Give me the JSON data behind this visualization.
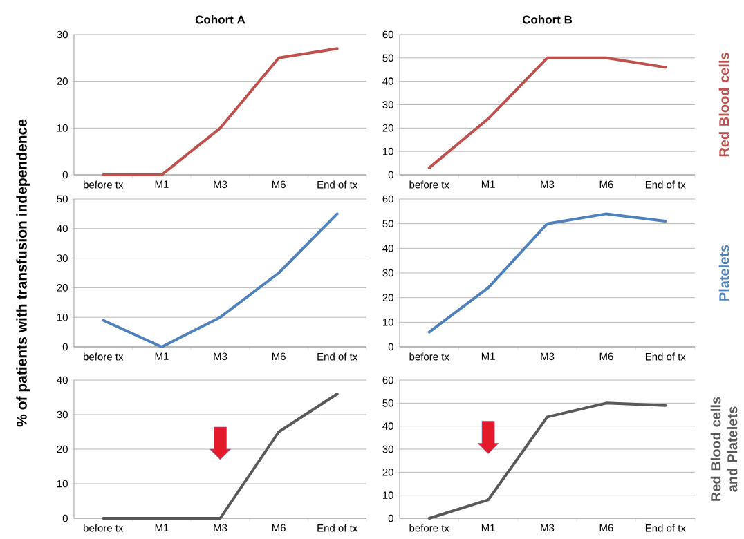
{
  "chart_data": [
    {
      "type": "line",
      "title": "Cohort A",
      "categories": [
        "before tx",
        "M1",
        "M3",
        "M6",
        "End of tx"
      ],
      "series": [
        {
          "color": "#c0504d",
          "values": [
            0,
            0,
            10,
            25,
            27
          ]
        }
      ],
      "ylim": [
        0,
        30
      ],
      "yticks": [
        0,
        10,
        20,
        30
      ],
      "grid": "y"
    },
    {
      "type": "line",
      "title": "Cohort B",
      "y2label": "Red Blood cells",
      "categories": [
        "before tx",
        "M1",
        "M3",
        "M6",
        "End of tx"
      ],
      "series": [
        {
          "color": "#c0504d",
          "values": [
            3,
            24,
            50,
            50,
            46
          ]
        }
      ],
      "ylim": [
        0,
        60
      ],
      "yticks": [
        0,
        10,
        20,
        30,
        40,
        50,
        60
      ],
      "grid": "y"
    },
    {
      "type": "line",
      "ylabel": "% of patients with transfusion independence",
      "categories": [
        "before tx",
        "M1",
        "M3",
        "M6",
        "End of tx"
      ],
      "series": [
        {
          "color": "#4f81bd",
          "values": [
            9,
            0,
            10,
            25,
            45
          ]
        }
      ],
      "ylim": [
        0,
        50
      ],
      "yticks": [
        0,
        10,
        20,
        30,
        40,
        50
      ],
      "grid": "y"
    },
    {
      "type": "line",
      "y2label": "Platelets",
      "categories": [
        "before tx",
        "M1",
        "M3",
        "M6",
        "End of tx"
      ],
      "series": [
        {
          "color": "#4f81bd",
          "values": [
            6,
            24,
            50,
            54,
            51
          ]
        }
      ],
      "ylim": [
        0,
        60
      ],
      "yticks": [
        0,
        10,
        20,
        30,
        40,
        50,
        60
      ],
      "grid": "y"
    },
    {
      "type": "line",
      "categories": [
        "before tx",
        "M1",
        "M3",
        "M6",
        "End of tx"
      ],
      "series": [
        {
          "color": "#595959",
          "values": [
            0,
            0,
            0,
            25,
            36
          ]
        }
      ],
      "ylim": [
        0,
        40
      ],
      "yticks": [
        0,
        10,
        20,
        30,
        40
      ],
      "grid": "y"
    },
    {
      "type": "line",
      "y2label": "Red Blood cells and Platelets",
      "categories": [
        "before tx",
        "M1",
        "M3",
        "M6",
        "End of tx"
      ],
      "series": [
        {
          "color": "#595959",
          "values": [
            0,
            8,
            44,
            50,
            49
          ]
        }
      ],
      "ylim": [
        0,
        60
      ],
      "yticks": [
        0,
        10,
        20,
        30,
        40,
        50,
        60
      ],
      "grid": "y"
    }
  ]
}
